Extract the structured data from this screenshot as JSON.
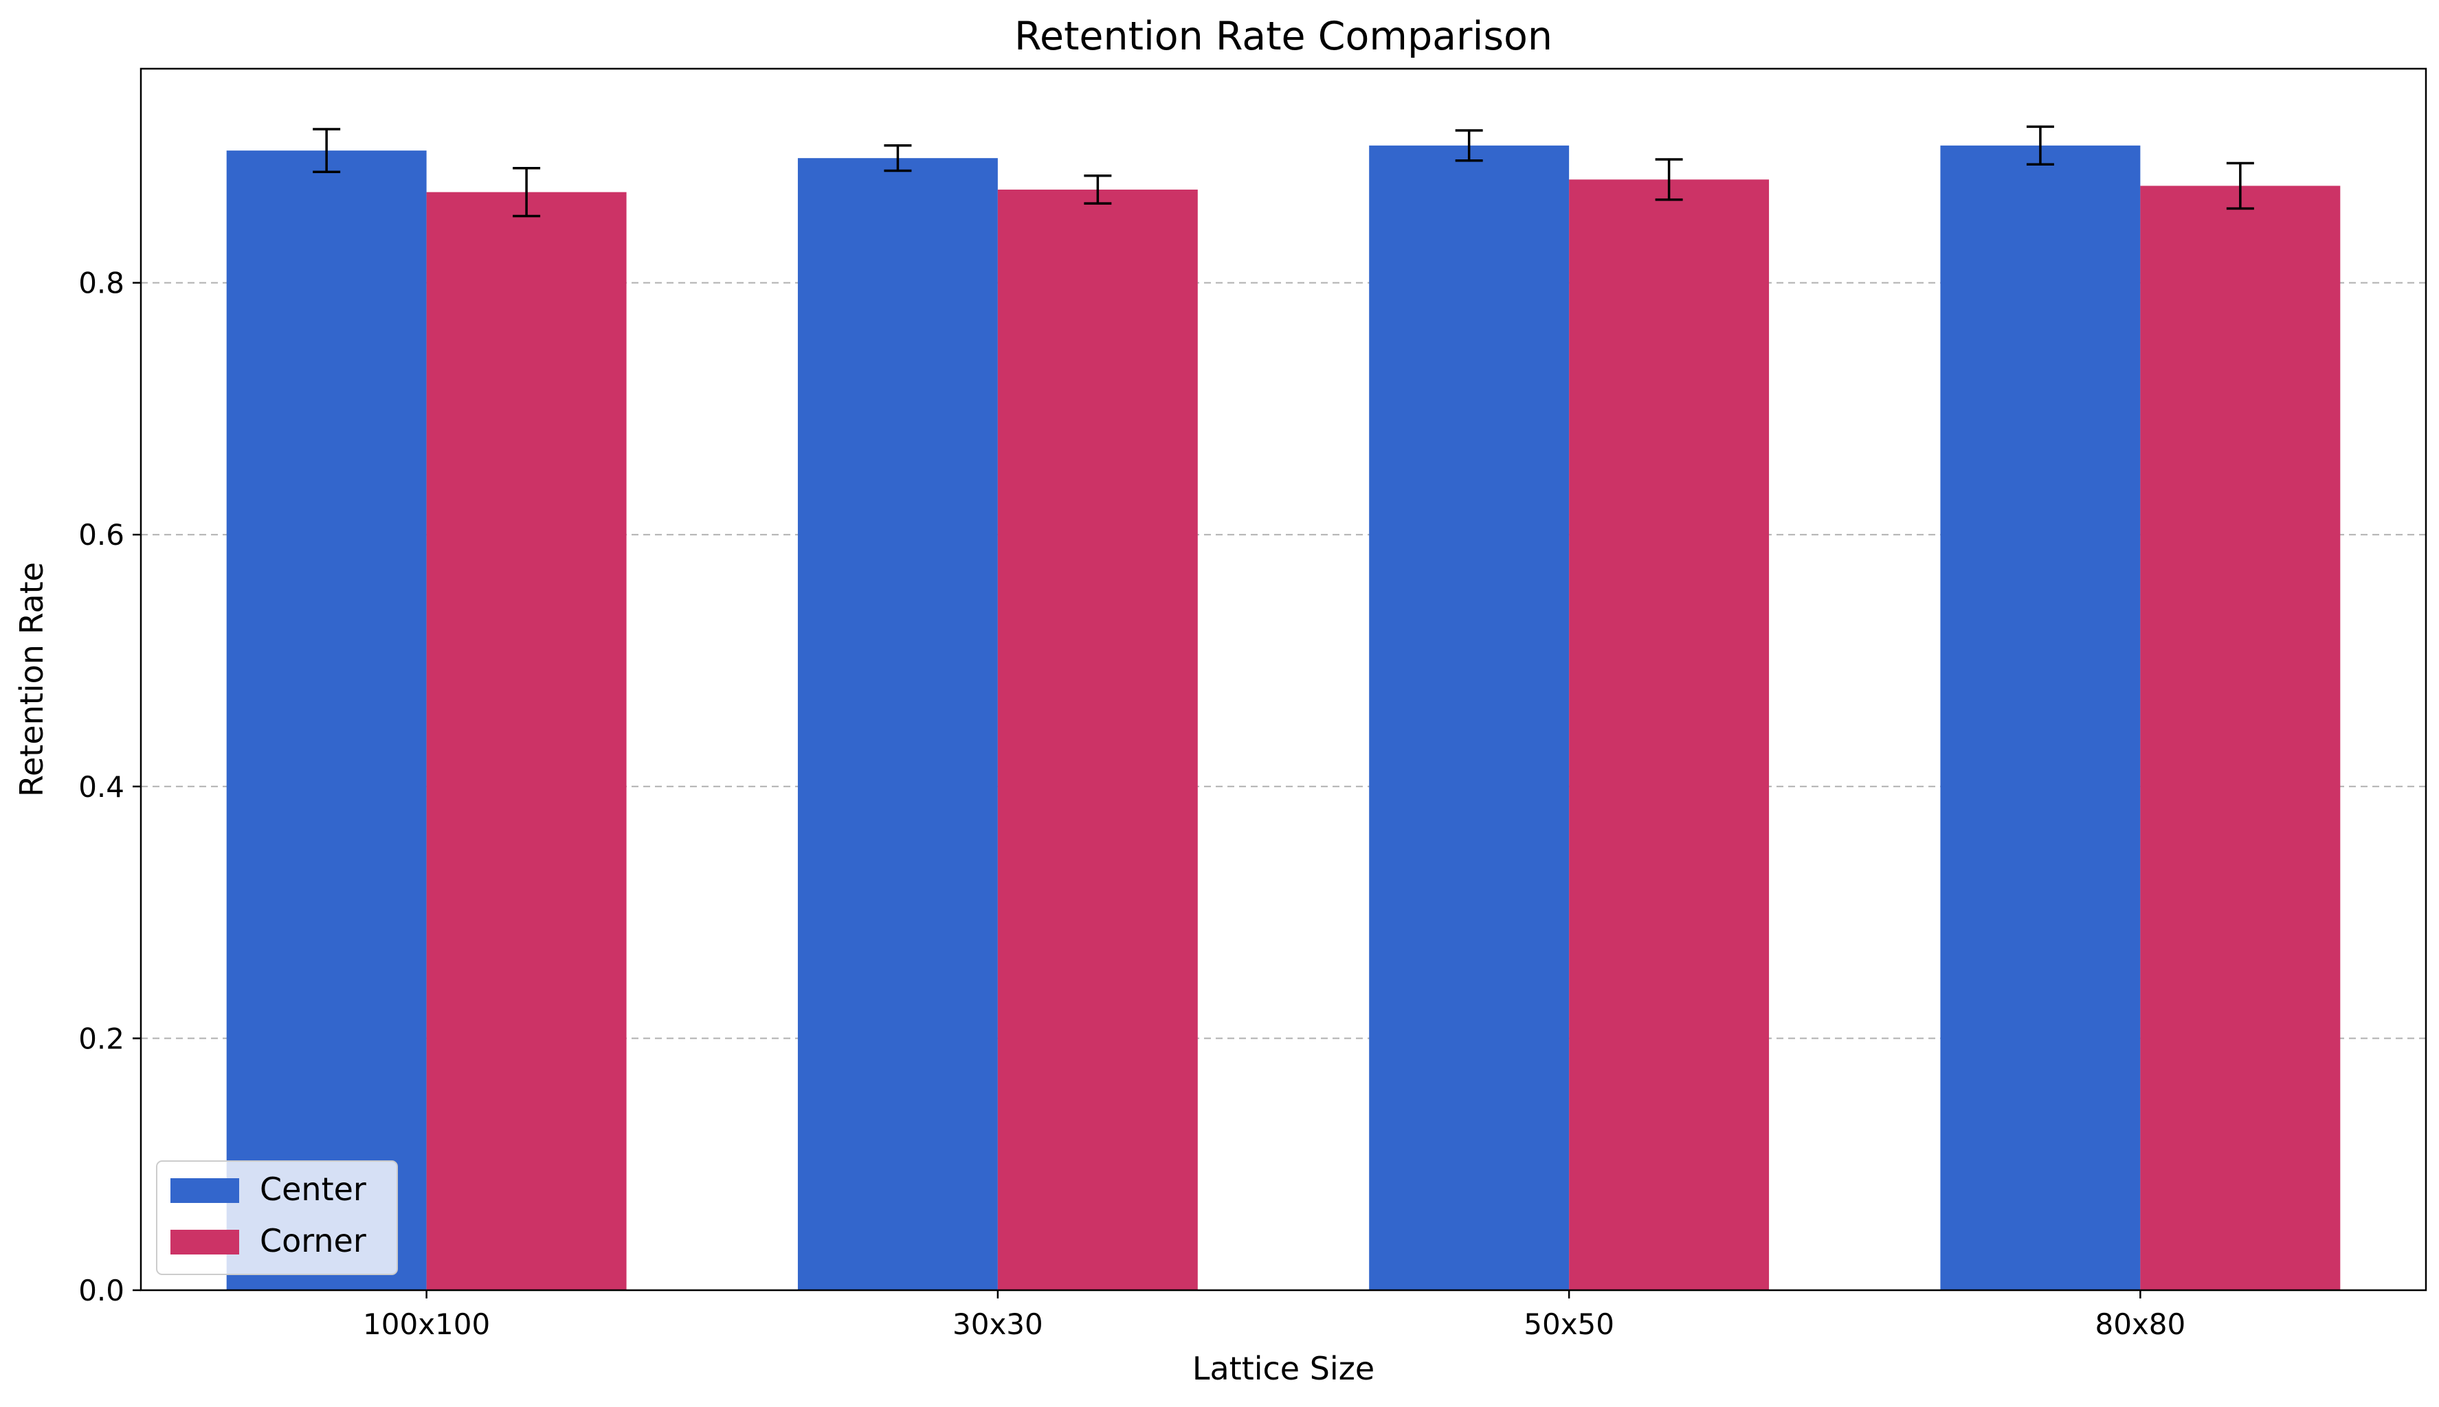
{
  "chart_data": {
    "type": "bar",
    "title": "Retention Rate Comparison",
    "xlabel": "Lattice Size",
    "ylabel": "Retention Rate",
    "categories": [
      "100x100",
      "30x30",
      "50x50",
      "80x80"
    ],
    "series": [
      {
        "name": "Center",
        "color": "#3366cc",
        "values": [
          0.905,
          0.899,
          0.909,
          0.909
        ],
        "errors": [
          0.017,
          0.01,
          0.012,
          0.015
        ]
      },
      {
        "name": "Corner",
        "color": "#cc3366",
        "values": [
          0.872,
          0.874,
          0.882,
          0.877
        ],
        "errors": [
          0.019,
          0.011,
          0.016,
          0.018
        ]
      }
    ],
    "ylim": [
      0,
      0.97
    ],
    "yticks": [
      0.0,
      0.2,
      0.4,
      0.6,
      0.8
    ],
    "ytick_labels": [
      "0.0",
      "0.2",
      "0.4",
      "0.6",
      "0.8"
    ],
    "grid": "y-dashed",
    "legend_position": "lower-left"
  }
}
